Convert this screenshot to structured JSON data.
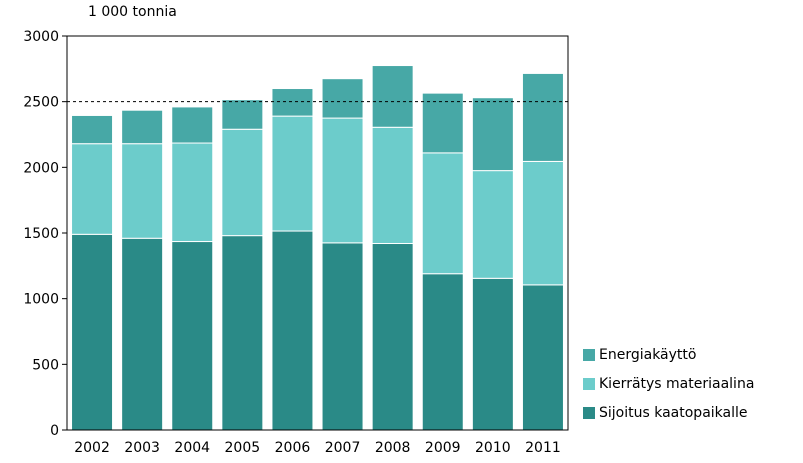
{
  "chart_data": {
    "type": "bar",
    "stacked": true,
    "unit_label": "1 000 tonnia",
    "categories": [
      "2002",
      "2003",
      "2004",
      "2005",
      "2006",
      "2007",
      "2008",
      "2009",
      "2010",
      "2011"
    ],
    "series": [
      {
        "name": "Sijoitus kaatopaikalle",
        "color": "#2a8a87",
        "values": [
          1490,
          1460,
          1435,
          1480,
          1515,
          1425,
          1420,
          1190,
          1155,
          1105
        ]
      },
      {
        "name": "Kierrätys materiaalina",
        "color": "#6ccccb",
        "values": [
          690,
          720,
          750,
          810,
          875,
          950,
          885,
          920,
          820,
          940
        ]
      },
      {
        "name": "Energiakäyttö",
        "color": "#47a8a6",
        "values": [
          215,
          255,
          275,
          225,
          210,
          300,
          470,
          455,
          555,
          670
        ]
      }
    ],
    "ylim": [
      0,
      3000
    ],
    "yticks": [
      "0",
      "500",
      "1000",
      "1500",
      "2000",
      "2500",
      "3000"
    ],
    "reference_line": {
      "value": 2500,
      "style": "dashed"
    },
    "legend": {
      "placement": "bottom-right",
      "order": [
        "Energiakäyttö",
        "Kierrätys materiaalina",
        "Sijoitus kaatopaikalle"
      ]
    },
    "grid": false
  }
}
